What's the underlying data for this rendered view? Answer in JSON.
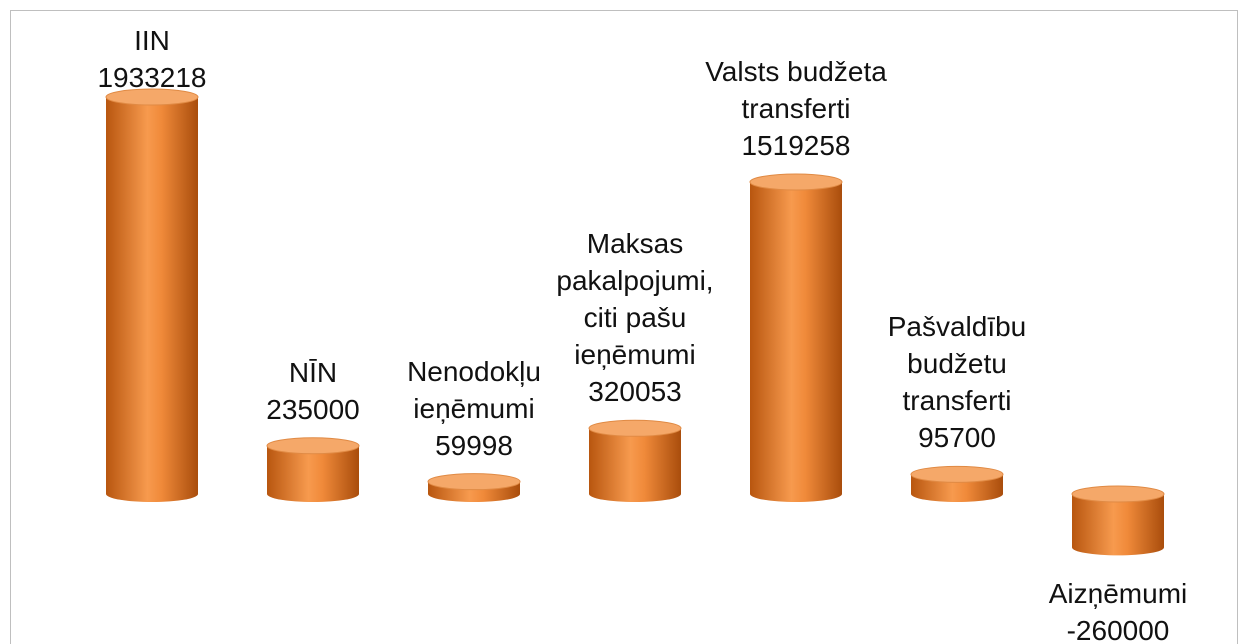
{
  "chart_data": {
    "type": "bar",
    "style": "cylinder",
    "color": "#f08a3a",
    "categories": [
      "IIN",
      "NĪN",
      "Nenodokļu ieņēmumi",
      "Maksas pakalpojumi, citi pašu ieņēmumi",
      "Valsts budžeta transferti",
      "Pašvaldību budžetu transferti",
      "Aizņēmumi"
    ],
    "values": [
      1933218,
      235000,
      59998,
      320053,
      1519258,
      95700,
      -260000
    ]
  }
}
